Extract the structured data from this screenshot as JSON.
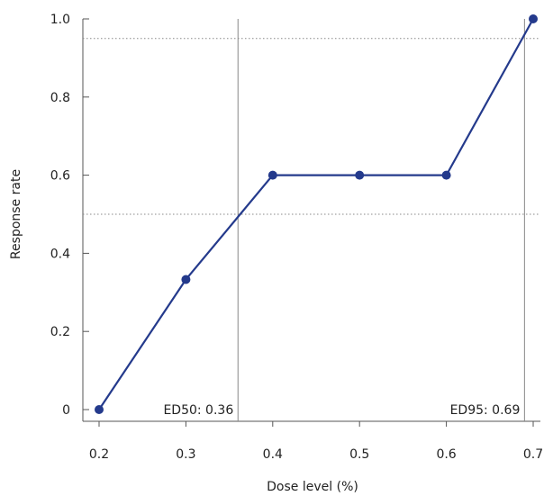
{
  "chart_data": {
    "type": "line",
    "xlabel": "Dose level (%)",
    "ylabel": "Response rate",
    "xlim": [
      0.2,
      0.7
    ],
    "ylim": [
      0,
      1.0
    ],
    "x_ticks": [
      "0.2",
      "0.3",
      "0.4",
      "0.5",
      "0.6",
      "0.7"
    ],
    "y_ticks": [
      "0",
      "0.2",
      "0.4",
      "0.6",
      "0.8",
      "1.0"
    ],
    "series": [
      {
        "x": [
          0.2,
          0.3,
          0.4,
          0.5,
          0.6,
          0.7
        ],
        "y": [
          0,
          0.333,
          0.6,
          0.6,
          0.6,
          1.0
        ],
        "color": "#243a8c"
      }
    ],
    "reference_lines": {
      "horizontal": [
        0.5,
        0.95
      ],
      "vertical": [
        0.36,
        0.69
      ]
    },
    "annotations": [
      {
        "text": "ED50: 0.36",
        "x": 0.36
      },
      {
        "text": "ED95: 0.69",
        "x": 0.69
      }
    ],
    "grid": false,
    "legend": "none"
  }
}
